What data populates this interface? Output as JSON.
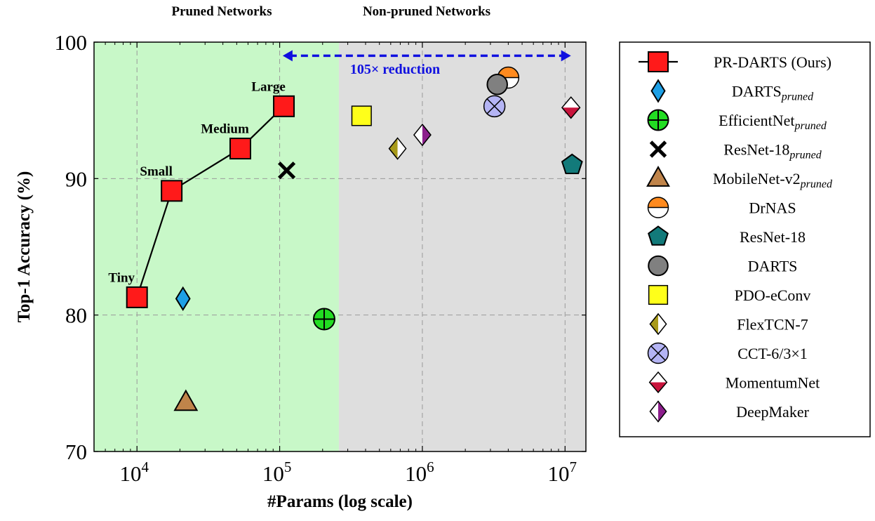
{
  "chart_data": {
    "type": "scatter",
    "xscale": "log",
    "xlim": [
      5000,
      14000000
    ],
    "ylim": [
      70,
      100
    ],
    "xlabel": "#Params (log scale)",
    "ylabel": "Top-1 Accuracy (%)",
    "grid": true,
    "legend_position": "right",
    "x_ticks": [
      {
        "value": 10000,
        "base": "10",
        "exp": "4"
      },
      {
        "value": 100000,
        "base": "10",
        "exp": "5"
      },
      {
        "value": 1000000,
        "base": "10",
        "exp": "6"
      },
      {
        "value": 10000000,
        "base": "10",
        "exp": "7"
      }
    ],
    "y_ticks": [
      70,
      80,
      90,
      100
    ],
    "regions": [
      {
        "label": "Pruned Networks",
        "from": 5000,
        "to": 260000,
        "color": "#c8f8c8"
      },
      {
        "label": "Non-pruned Networks",
        "from": 260000,
        "to": 14000000,
        "color": "#dedede"
      }
    ],
    "annotation": {
      "text": "105× reduction",
      "x_from": 105000,
      "x_to": 11000000,
      "y": 99,
      "color": "#1010e0"
    },
    "series": [
      {
        "name": "PR-DARTS (Ours)",
        "label_main": "PR-DARTS (Ours)",
        "label_sub": "",
        "marker": "square",
        "fill": "#ff1a1a",
        "line": true,
        "points": [
          {
            "x": 10000,
            "y": 81.3,
            "label": "Tiny"
          },
          {
            "x": 17500,
            "y": 89.1,
            "label": "Small"
          },
          {
            "x": 53000,
            "y": 92.2,
            "label": "Medium"
          },
          {
            "x": 107000,
            "y": 95.3,
            "label": "Large"
          }
        ]
      },
      {
        "name": "DARTS_pruned",
        "label_main": "DARTS",
        "label_sub": "pruned",
        "marker": "diamond",
        "fill": "#1ea0e6",
        "points": [
          {
            "x": 21000,
            "y": 81.2
          }
        ]
      },
      {
        "name": "EfficientNet_pruned",
        "label_main": "EfficientNet",
        "label_sub": "pruned",
        "marker": "circle-plus",
        "fill": "#22dd22",
        "points": [
          {
            "x": 205000,
            "y": 79.7
          }
        ]
      },
      {
        "name": "ResNet-18_pruned",
        "label_main": "ResNet-18",
        "label_sub": "pruned",
        "marker": "x",
        "fill": "#000000",
        "points": [
          {
            "x": 112000,
            "y": 90.6
          }
        ]
      },
      {
        "name": "MobileNet-v2_pruned",
        "label_main": "MobileNet-v2",
        "label_sub": "pruned",
        "marker": "triangle",
        "fill": "#c0844a",
        "points": [
          {
            "x": 22000,
            "y": 73.6
          }
        ]
      },
      {
        "name": "DrNAS",
        "label_main": "DrNAS",
        "label_sub": "",
        "marker": "half-circle",
        "fill": "#ff8a1e",
        "points": [
          {
            "x": 4000000,
            "y": 97.4
          }
        ]
      },
      {
        "name": "ResNet-18",
        "label_main": "ResNet-18",
        "label_sub": "",
        "marker": "pentagon",
        "fill": "#127a7a",
        "points": [
          {
            "x": 11200000,
            "y": 91.0
          }
        ]
      },
      {
        "name": "DARTS",
        "label_main": "DARTS",
        "label_sub": "",
        "marker": "circle",
        "fill": "#808080",
        "points": [
          {
            "x": 3350000,
            "y": 96.9
          }
        ]
      },
      {
        "name": "PDO-eConv",
        "label_main": "PDO-eConv",
        "label_sub": "",
        "marker": "square-plain",
        "fill": "#ffff1a",
        "points": [
          {
            "x": 375000,
            "y": 94.6
          }
        ]
      },
      {
        "name": "FlexTCN-7",
        "label_main": "FlexTCN-7",
        "label_sub": "",
        "marker": "diamond-left",
        "fill": "#a89a1a",
        "points": [
          {
            "x": 670000,
            "y": 92.2
          }
        ]
      },
      {
        "name": "CCT-6/3×1",
        "label_main": "CCT-6/3×1",
        "label_sub": "",
        "marker": "circle-x",
        "fill": "#b4b4f4",
        "points": [
          {
            "x": 3200000,
            "y": 95.3
          }
        ]
      },
      {
        "name": "MomentumNet",
        "label_main": "MomentumNet",
        "label_sub": "",
        "marker": "diamond-bottom",
        "fill": "#c8143c",
        "points": [
          {
            "x": 11000000,
            "y": 95.2
          }
        ]
      },
      {
        "name": "DeepMaker",
        "label_main": "DeepMaker",
        "label_sub": "",
        "marker": "diamond-right",
        "fill": "#8c1e8c",
        "points": [
          {
            "x": 1000000,
            "y": 93.2
          }
        ]
      }
    ]
  }
}
